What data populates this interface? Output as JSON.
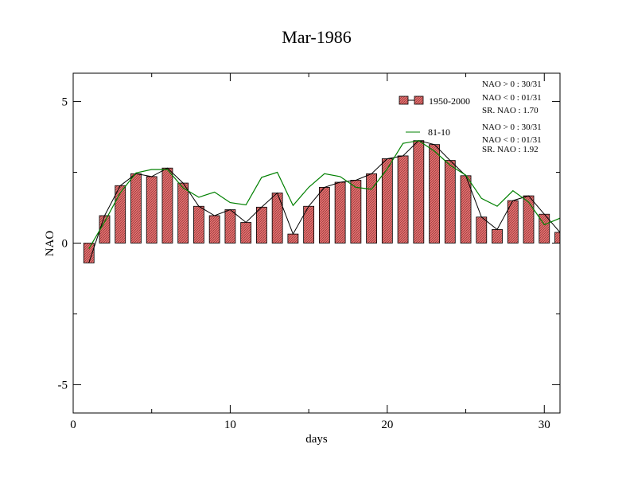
{
  "chart_data": {
    "type": "bar",
    "title": "Mar-1986",
    "xlabel": "days",
    "ylabel": "NAO",
    "xlim": [
      0,
      31
    ],
    "ylim": [
      -6,
      6
    ],
    "x_ticks": [
      0,
      10,
      20,
      30
    ],
    "y_ticks": [
      -5,
      0,
      5
    ],
    "grid": false,
    "legend_position": "top-right",
    "x": [
      1,
      2,
      3,
      4,
      5,
      6,
      7,
      8,
      9,
      10,
      11,
      12,
      13,
      14,
      15,
      16,
      17,
      18,
      19,
      20,
      21,
      22,
      23,
      24,
      25,
      26,
      27,
      28,
      29,
      30,
      31
    ],
    "series": [
      {
        "name": "1950-2000",
        "style": "bar-with-line",
        "color": "#e36f6f",
        "line_color": "#000000",
        "values": [
          -0.7,
          0.97,
          2.03,
          2.45,
          2.35,
          2.65,
          2.12,
          1.3,
          0.97,
          1.18,
          0.73,
          1.27,
          1.77,
          0.32,
          1.3,
          1.97,
          2.15,
          2.22,
          2.45,
          2.98,
          3.08,
          3.62,
          3.48,
          2.92,
          2.38,
          0.92,
          0.48,
          1.5,
          1.67,
          1.02,
          0.38
        ]
      },
      {
        "name": "81-10",
        "style": "line",
        "color": "#008000",
        "values": [
          -0.2,
          0.75,
          1.78,
          2.48,
          2.6,
          2.6,
          1.95,
          1.62,
          1.8,
          1.43,
          1.35,
          2.32,
          2.5,
          1.33,
          1.97,
          2.45,
          2.35,
          1.97,
          1.9,
          2.62,
          3.52,
          3.62,
          3.25,
          2.75,
          2.4,
          1.58,
          1.3,
          1.85,
          1.45,
          0.65,
          0.88
        ]
      }
    ],
    "stats": [
      {
        "line1": "NAO > 0 : 30/31",
        "line2": "NAO < 0 : 01/31",
        "line3": "SR. NAO :  1.70"
      },
      {
        "line1": "NAO > 0 : 30/31",
        "line2": "NAO < 0 : 01/31",
        "line3": "SR. NAO :  1.92"
      }
    ]
  }
}
